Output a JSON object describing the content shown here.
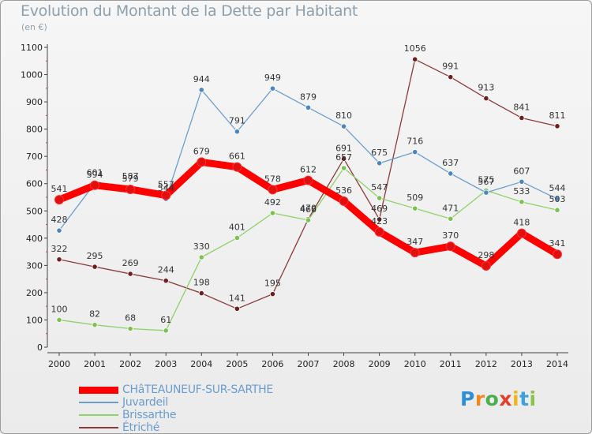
{
  "header": {
    "title": "Evolution du Montant de la Dette par Habitant",
    "subtitle": "(en €)"
  },
  "logo": {
    "text": "Proxiti",
    "letters": [
      "P",
      "r",
      "o",
      "x",
      "i",
      "t",
      "i"
    ]
  },
  "chart_data": {
    "type": "line",
    "title": "Evolution du Montant de la Dette par Habitant",
    "subtitle": "(en €)",
    "x": [
      2000,
      2001,
      2002,
      2003,
      2004,
      2005,
      2006,
      2007,
      2008,
      2009,
      2010,
      2011,
      2012,
      2013,
      2014
    ],
    "ylim": [
      0,
      1100
    ],
    "yticks": [
      0,
      100,
      200,
      300,
      400,
      500,
      600,
      700,
      800,
      900,
      1000,
      1100
    ],
    "grid": false,
    "legend_placement": "bottom-left",
    "series": [
      {
        "name": "CHâTEAUNEUF-SUR-SARTHE",
        "color": "#ff0000",
        "point_color": "#e01010",
        "values": [
          541,
          594,
          579,
          557,
          679,
          661,
          578,
          612,
          536,
          423,
          347,
          370,
          298,
          418,
          341
        ]
      },
      {
        "name": "Juvardeil",
        "color": "#6a9ecf",
        "point_color": "#4a86c0",
        "values": [
          428,
          601,
          587,
          544,
          944,
          791,
          949,
          879,
          810,
          675,
          716,
          637,
          567,
          607,
          544
        ]
      },
      {
        "name": "Brissarthe",
        "color": "#8fd16a",
        "point_color": "#7cc252",
        "values": [
          100,
          82,
          68,
          61,
          330,
          401,
          492,
          466,
          657,
          547,
          509,
          471,
          575,
          533,
          503
        ]
      },
      {
        "name": "Étriché",
        "color": "#8b3b3b",
        "point_color": "#6e1f1f",
        "values": [
          322,
          295,
          269,
          244,
          198,
          141,
          195,
          470,
          691,
          469,
          1056,
          991,
          913,
          841,
          811
        ]
      }
    ]
  }
}
